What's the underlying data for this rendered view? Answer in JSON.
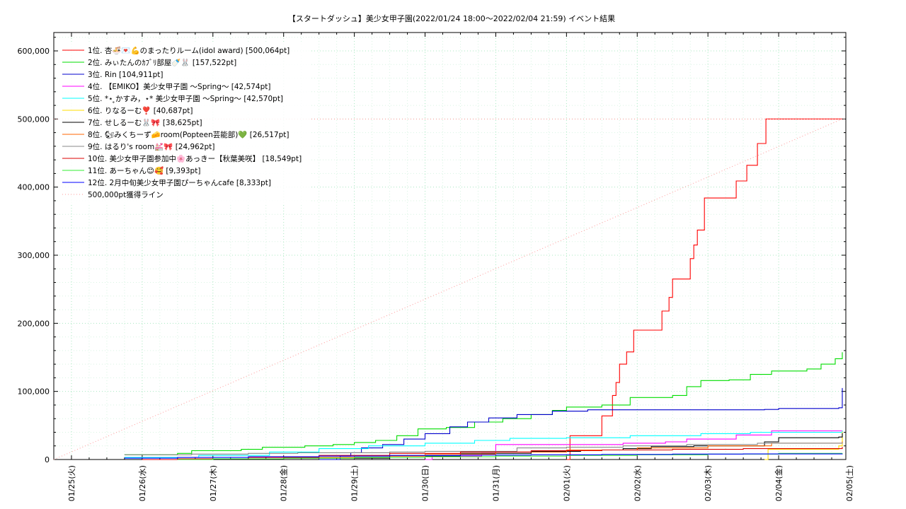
{
  "chart_data": {
    "type": "line",
    "title": "【スタートダッシュ】美少女甲子園(2022/01/24 18:00～2022/02/04 21:59)          イベント結果",
    "xlabel": "",
    "ylabel": "",
    "x_ticks": [
      "01/25(火)",
      "01/26(水)",
      "01/27(木)",
      "01/28(金)",
      "01/29(土)",
      "01/30(日)",
      "01/31(月)",
      "02/01(火)",
      "02/02(水)",
      "02/03(木)",
      "02/04(金)",
      "02/05(土)"
    ],
    "xlim_days": [
      -0.25,
      10.95
    ],
    "y_ticks": [
      "0",
      "100,000",
      "200,000",
      "300,000",
      "400,000",
      "500,000",
      "600,000"
    ],
    "ylim": [
      0,
      627000
    ],
    "grid": true,
    "legend_position": "top-left",
    "series": [
      {
        "name": "1位. 杏🍜💌💪のまったりルーム(idol award) [500,064pt]",
        "color": "#ff0000",
        "points": [
          [
            7.0,
            0
          ],
          [
            7.05,
            0
          ],
          [
            7.05,
            35000
          ],
          [
            7.45,
            35000
          ],
          [
            7.5,
            64000
          ],
          [
            7.6,
            64000
          ],
          [
            7.65,
            94000
          ],
          [
            7.7,
            113000
          ],
          [
            7.75,
            140000
          ],
          [
            7.85,
            158000
          ],
          [
            7.95,
            190000
          ],
          [
            8.3,
            190000
          ],
          [
            8.35,
            218000
          ],
          [
            8.45,
            238000
          ],
          [
            8.5,
            265000
          ],
          [
            8.7,
            265000
          ],
          [
            8.75,
            295000
          ],
          [
            8.8,
            315000
          ],
          [
            8.85,
            337000
          ],
          [
            8.95,
            384000
          ],
          [
            9.35,
            384000
          ],
          [
            9.4,
            409000
          ],
          [
            9.5,
            409000
          ],
          [
            9.55,
            432000
          ],
          [
            9.65,
            432000
          ],
          [
            9.7,
            464000
          ],
          [
            9.8,
            464000
          ],
          [
            9.82,
            500064
          ],
          [
            10.9,
            500064
          ]
        ]
      },
      {
        "name": "2位. みぃたんのｶﾌﾞﾘ部屋🍼🐰 [157,522pt]",
        "color": "#00dd00",
        "points": [
          [
            0.75,
            7000
          ],
          [
            1.5,
            9000
          ],
          [
            1.7,
            13000
          ],
          [
            2.4,
            15000
          ],
          [
            2.7,
            18000
          ],
          [
            3.3,
            20000
          ],
          [
            3.7,
            22000
          ],
          [
            4.0,
            25000
          ],
          [
            4.3,
            28000
          ],
          [
            4.6,
            35000
          ],
          [
            4.9,
            45000
          ],
          [
            5.3,
            47000
          ],
          [
            5.7,
            55000
          ],
          [
            6.1,
            60000
          ],
          [
            6.5,
            66000
          ],
          [
            6.8,
            72000
          ],
          [
            7.0,
            77000
          ],
          [
            7.5,
            80000
          ],
          [
            7.9,
            91000
          ],
          [
            8.5,
            94000
          ],
          [
            8.7,
            107000
          ],
          [
            8.9,
            116000
          ],
          [
            9.3,
            117000
          ],
          [
            9.6,
            125000
          ],
          [
            9.9,
            130000
          ],
          [
            10.4,
            133000
          ],
          [
            10.6,
            140000
          ],
          [
            10.8,
            148000
          ],
          [
            10.9,
            157522
          ]
        ]
      },
      {
        "name": "3位. Rin [104,911pt]",
        "color": "#0000cc",
        "points": [
          [
            3.5,
            0
          ],
          [
            3.6,
            0
          ],
          [
            3.8,
            5000
          ],
          [
            3.95,
            10000
          ],
          [
            4.1,
            17000
          ],
          [
            4.4,
            22000
          ],
          [
            4.7,
            30000
          ],
          [
            5.0,
            38000
          ],
          [
            5.35,
            48000
          ],
          [
            5.6,
            55000
          ],
          [
            5.9,
            61000
          ],
          [
            6.3,
            66000
          ],
          [
            6.8,
            71000
          ],
          [
            7.3,
            73000
          ],
          [
            9.8,
            73500
          ],
          [
            10.0,
            75000
          ],
          [
            10.85,
            76000
          ],
          [
            10.9,
            80000
          ],
          [
            10.9,
            104911
          ]
        ]
      },
      {
        "name": "4位. 【EMIKO】美少女甲子園 〜Spring〜 [42,574pt]",
        "color": "#ff00ff",
        "points": [
          [
            5.0,
            0
          ],
          [
            5.1,
            5000
          ],
          [
            5.8,
            9000
          ],
          [
            6.0,
            22000
          ],
          [
            7.8,
            24000
          ],
          [
            8.4,
            26000
          ],
          [
            8.7,
            30000
          ],
          [
            9.4,
            36000
          ],
          [
            9.9,
            42000
          ],
          [
            10.9,
            42574
          ]
        ]
      },
      {
        "name": "5位. *⋆ ̥かすみ，⋆* 美少女甲子園 〜Spring〜 [42,570pt]",
        "color": "#00ffff",
        "points": [
          [
            0.75,
            3000
          ],
          [
            1.8,
            6000
          ],
          [
            2.8,
            11000
          ],
          [
            3.5,
            16000
          ],
          [
            4.2,
            20000
          ],
          [
            5.0,
            24000
          ],
          [
            5.7,
            28000
          ],
          [
            6.2,
            31000
          ],
          [
            7.0,
            32000
          ],
          [
            7.9,
            35000
          ],
          [
            8.9,
            38000
          ],
          [
            9.6,
            40000
          ],
          [
            10.9,
            42570
          ]
        ]
      },
      {
        "name": "6位. りなるーむ❣️ [40,687pt]",
        "color": "#ffdd00",
        "points": [
          [
            9.8,
            0
          ],
          [
            9.85,
            15000
          ],
          [
            10.85,
            20000
          ],
          [
            10.9,
            40687
          ]
        ]
      },
      {
        "name": "7位. せしるーむ🐰🎀 [38,625pt]",
        "color": "#000000",
        "points": [
          [
            2.5,
            0
          ],
          [
            3.0,
            2000
          ],
          [
            4.5,
            5000
          ],
          [
            5.5,
            9000
          ],
          [
            6.5,
            12000
          ],
          [
            7.2,
            14000
          ],
          [
            7.8,
            16000
          ],
          [
            8.2,
            19000
          ],
          [
            8.8,
            20000
          ],
          [
            9.8,
            26000
          ],
          [
            10.0,
            32000
          ],
          [
            10.85,
            33000
          ],
          [
            10.9,
            38625
          ]
        ]
      },
      {
        "name": "8位. 🐿みくちーず🧀room(Popteen芸能部)💚 [26,517pt]",
        "color": "#ff6600",
        "points": [
          [
            1.5,
            0
          ],
          [
            2.0,
            1000
          ],
          [
            3.0,
            3000
          ],
          [
            4.0,
            5000
          ],
          [
            5.0,
            8000
          ],
          [
            6.0,
            11000
          ],
          [
            7.0,
            14000
          ],
          [
            8.0,
            17000
          ],
          [
            9.0,
            20000
          ],
          [
            9.9,
            24000
          ],
          [
            10.9,
            26517
          ]
        ]
      },
      {
        "name": "9位. はるり's room💒🎀 [24,962pt]",
        "color": "#888888",
        "points": [
          [
            0.75,
            7000
          ],
          [
            1.7,
            8000
          ],
          [
            2.5,
            9000
          ],
          [
            3.2,
            10000
          ],
          [
            4.5,
            11000
          ],
          [
            5.0,
            12000
          ],
          [
            6.3,
            17000
          ],
          [
            7.0,
            18000
          ],
          [
            7.8,
            20000
          ],
          [
            8.7,
            22000
          ],
          [
            9.7,
            24000
          ],
          [
            10.9,
            24962
          ]
        ]
      },
      {
        "name": "10位. 美少女甲子園参加中🌸あっきー【秋葉美咲】 [18,549pt]",
        "color": "#dd0000",
        "points": [
          [
            1.0,
            0
          ],
          [
            1.5,
            1000
          ],
          [
            2.5,
            3000
          ],
          [
            3.5,
            6000
          ],
          [
            4.5,
            9000
          ],
          [
            5.5,
            11000
          ],
          [
            6.5,
            13000
          ],
          [
            7.5,
            14000
          ],
          [
            8.5,
            15000
          ],
          [
            9.5,
            16000
          ],
          [
            10.9,
            18549
          ]
        ]
      },
      {
        "name": "11位. あーちゃん😊🥰 [9,393pt]",
        "color": "#33ee33",
        "points": [
          [
            1.5,
            0
          ],
          [
            2.0,
            1000
          ],
          [
            3.0,
            2000
          ],
          [
            4.0,
            3000
          ],
          [
            5.0,
            4000
          ],
          [
            6.0,
            5000
          ],
          [
            7.0,
            6000
          ],
          [
            8.0,
            7000
          ],
          [
            9.0,
            8000
          ],
          [
            10.0,
            9000
          ],
          [
            10.9,
            9393
          ]
        ]
      },
      {
        "name": "12位. 2月中旬美少女甲子園ぴーちゃんcafe [8,333pt]",
        "color": "#0000ff",
        "points": [
          [
            0.75,
            2000
          ],
          [
            1.5,
            3000
          ],
          [
            2.5,
            4000
          ],
          [
            3.5,
            5000
          ],
          [
            4.5,
            6000
          ],
          [
            5.5,
            6500
          ],
          [
            6.5,
            7000
          ],
          [
            7.5,
            7500
          ],
          [
            8.5,
            8000
          ],
          [
            9.5,
            8200
          ],
          [
            10.9,
            8333
          ]
        ]
      },
      {
        "name": "500,000pt獲得ライン",
        "color": "#ff9999",
        "dashed": true,
        "points": [
          [
            -0.25,
            0
          ],
          [
            10.9,
            500000
          ]
        ]
      }
    ],
    "threshold_line": {
      "value": 500000,
      "color": "#ff9999"
    }
  }
}
